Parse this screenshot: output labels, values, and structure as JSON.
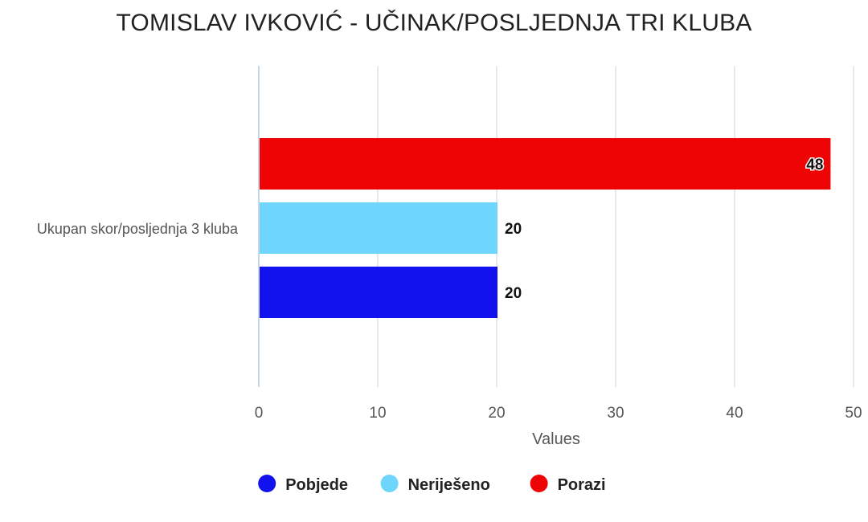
{
  "chart_data": {
    "type": "bar",
    "orientation": "horizontal",
    "title": "TOMISLAV IVKOVIĆ - UČINAK/POSLJEDNJA TRI KLUBA",
    "categories": [
      "Ukupan skor/posljednja 3 kluba"
    ],
    "series": [
      {
        "name": "Pobjede",
        "values": [
          20
        ],
        "color": "#1212EE"
      },
      {
        "name": "Neriješeno",
        "values": [
          20
        ],
        "color": "#6ED6FD"
      },
      {
        "name": "Porazi",
        "values": [
          48
        ],
        "color": "#EE0404"
      }
    ],
    "xlabel": "Values",
    "ylabel": "",
    "xlim": [
      0,
      50
    ],
    "ticks": [
      "0",
      "10",
      "20",
      "30",
      "40",
      "50"
    ],
    "grid": true,
    "legend_position": "bottom",
    "data_labels": true
  }
}
